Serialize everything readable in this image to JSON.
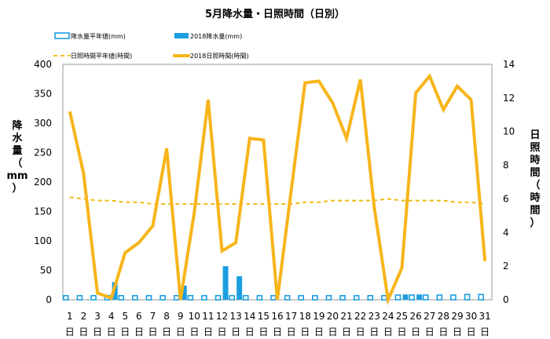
{
  "chart_data": {
    "type": "bar+line",
    "title": "5月降水量・日照時間（日別）",
    "legend": {
      "placement": "top",
      "items": [
        {
          "label": "降水量平年値(mm)",
          "style": "bar-outline",
          "color": "#1a9ee0"
        },
        {
          "label": "2018降水量(mm)",
          "style": "bar-filled",
          "color": "#1a9ee0"
        },
        {
          "label": "日照時間平年値(時間)",
          "style": "dashed-line",
          "color": "#f0b400"
        },
        {
          "label": "2018日照時間(時間)",
          "style": "line",
          "color": "#f7b51b"
        }
      ]
    },
    "y_left": {
      "label_chars": [
        "降",
        "水",
        "量",
        "（",
        "mm",
        "）"
      ],
      "ylim": [
        0,
        400
      ],
      "ticks": [
        "400",
        "350",
        "300",
        "250",
        "200",
        "150",
        "100",
        "50",
        "0"
      ]
    },
    "y_right": {
      "label_chars": [
        "日",
        "照",
        "時",
        "間",
        "（",
        "時",
        "間",
        "）"
      ],
      "ylim": [
        0,
        14
      ],
      "ticks": [
        "14",
        "12",
        "10",
        "8",
        "6",
        "4",
        "2",
        "0"
      ]
    },
    "categories": [
      "1",
      "2",
      "3",
      "4",
      "5",
      "6",
      "7",
      "8",
      "9",
      "10",
      "11",
      "12",
      "13",
      "14",
      "15",
      "16",
      "17",
      "18",
      "19",
      "20",
      "21",
      "22",
      "23",
      "24",
      "25",
      "26",
      "27",
      "28",
      "29",
      "30",
      "31"
    ],
    "category_suffix": "日",
    "series": [
      {
        "name": "降水量平年値(mm)",
        "axis": "left",
        "kind": "bar-outline",
        "values": [
          7,
          7,
          7,
          7,
          7,
          7,
          7,
          7,
          7,
          7,
          7,
          7,
          7,
          7,
          7,
          7,
          7,
          7,
          7,
          7,
          7,
          7,
          7,
          7,
          8,
          8,
          8,
          8,
          8,
          9,
          9
        ]
      },
      {
        "name": "2018降水量(mm)",
        "axis": "left",
        "kind": "bar-filled",
        "values": [
          0,
          0,
          0,
          30,
          0,
          0,
          0,
          0,
          24,
          0,
          0,
          57,
          40,
          0,
          0,
          0,
          0,
          0,
          0,
          0,
          0,
          0,
          0,
          0,
          9,
          9,
          0,
          0,
          0,
          0,
          0
        ]
      },
      {
        "name": "日照時間平年値(時間)",
        "axis": "right",
        "kind": "dashed-line",
        "values": [
          6.1,
          6.0,
          5.9,
          5.9,
          5.8,
          5.8,
          5.7,
          5.7,
          5.7,
          5.7,
          5.7,
          5.7,
          5.7,
          5.7,
          5.7,
          5.7,
          5.7,
          5.8,
          5.8,
          5.9,
          5.9,
          5.9,
          5.9,
          6.0,
          5.9,
          5.9,
          5.9,
          5.9,
          5.8,
          5.8,
          5.7
        ]
      },
      {
        "name": "2018日照時間(時間)",
        "axis": "right",
        "kind": "line",
        "values": [
          11.2,
          7.5,
          0.4,
          0.1,
          2.8,
          3.4,
          4.4,
          9.0,
          0.0,
          5.2,
          11.9,
          2.9,
          3.4,
          9.6,
          9.5,
          0.0,
          6.5,
          12.9,
          13.0,
          11.7,
          9.6,
          13.1,
          5.5,
          0.0,
          1.9,
          12.3,
          13.3,
          11.3,
          12.7,
          11.9,
          2.3
        ]
      }
    ],
    "grid": false
  }
}
